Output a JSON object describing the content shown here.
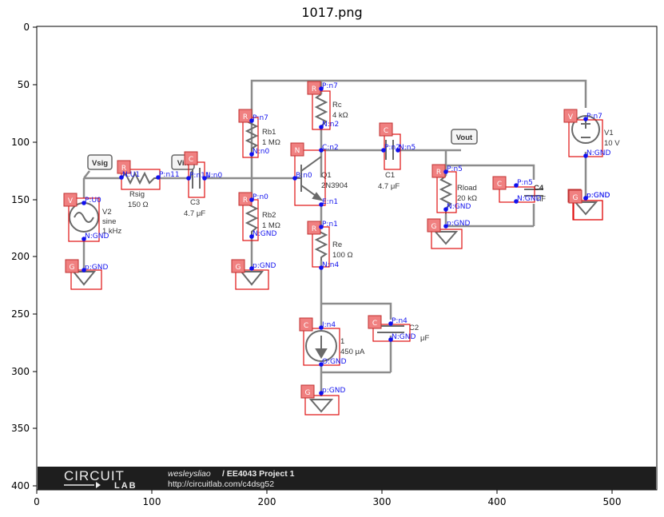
{
  "title": "1017.png",
  "axes": {
    "x_ticks": [
      "0",
      "100",
      "200",
      "300",
      "400",
      "500"
    ],
    "y_ticks": [
      "0",
      "50",
      "100",
      "150",
      "200",
      "250",
      "300",
      "350",
      "400"
    ]
  },
  "net_labels": {
    "vsig": "Vsig",
    "vin": "Vin",
    "vout": "Vout"
  },
  "components": {
    "v2": {
      "name": "V2",
      "type": "sine",
      "value": "1 kHz"
    },
    "rsig": {
      "name": "Rsig",
      "value": "150 Ω"
    },
    "c3": {
      "name": "C3",
      "value": "4.7 μF"
    },
    "rb1": {
      "name": "Rb1",
      "value": "1 MΩ"
    },
    "rb2": {
      "name": "Rb2",
      "value": "1 MΩ"
    },
    "rc": {
      "name": "Rc",
      "value": "4 kΩ"
    },
    "q1": {
      "name": "Q1",
      "value": "2N3904"
    },
    "re": {
      "name": "Re",
      "value": "100 Ω"
    },
    "c1": {
      "name": "C1",
      "value": "4.7 μF"
    },
    "rload": {
      "name": "Rload",
      "value": "20 kΩ"
    },
    "c4": {
      "name": "C4",
      "value": "nF"
    },
    "v1": {
      "name": "V1",
      "value": "10 V"
    },
    "i1": {
      "name": "1",
      "value": "450 μA"
    },
    "c2": {
      "name": "C2",
      "value": "μF"
    }
  },
  "detections": [
    {
      "tag": "V",
      "pins": [
        "P:U0",
        "N:GND"
      ]
    },
    {
      "tag": "R",
      "pins": [
        "N:U1",
        "P:n11"
      ]
    },
    {
      "tag": "C",
      "pins": [
        "P:n11",
        "N:n0"
      ]
    },
    {
      "tag": "R",
      "pins": [
        "P:n7",
        "N:n0"
      ]
    },
    {
      "tag": "R",
      "pins": [
        "P:n0",
        "N:GND"
      ]
    },
    {
      "tag": "R",
      "pins": [
        "P:n7",
        "N:n2"
      ]
    },
    {
      "tag": "N",
      "pins": [
        "C:n2",
        "B:n0",
        "E:n1"
      ]
    },
    {
      "tag": "R",
      "pins": [
        "P:n1",
        "N:n4"
      ]
    },
    {
      "tag": "C",
      "pins": [
        "P:n2",
        "N:n5"
      ]
    },
    {
      "tag": "R",
      "pins": [
        "P:n5",
        "N:GND"
      ]
    },
    {
      "tag": "C",
      "pins": [
        "P:n5",
        "N:GND"
      ]
    },
    {
      "tag": "V",
      "pins": [
        "P:n7",
        "N:GND"
      ]
    },
    {
      "tag": "G",
      "pins": [
        "p:GND"
      ]
    },
    {
      "tag": "G",
      "pins": [
        "p:GND"
      ]
    },
    {
      "tag": "G",
      "pins": [
        "p:GND"
      ]
    },
    {
      "tag": "G",
      "pins": [
        "p:GND"
      ]
    },
    {
      "tag": "G",
      "pins": [
        "p:GND"
      ]
    },
    {
      "tag": "C",
      "pins": [
        "I:n4",
        "O:GND"
      ]
    },
    {
      "tag": "C",
      "pins": [
        "P:n4",
        "N:GND"
      ]
    },
    {
      "tag": "G",
      "pins": [
        "p:GND"
      ]
    }
  ],
  "footer": {
    "brand_top": "CIRCUIT",
    "brand_bottom": "LAB",
    "author": "wesleysliao",
    "project": "/ EE4043 Project 1",
    "url": "http://circuitlab.com/c4dsg52"
  },
  "colors": {
    "bbox": "#e01010",
    "tag_fill": "#f08080",
    "pin": "#1515ee",
    "wire": "#8c8c8c",
    "footer_bg": "#1e1e1e"
  }
}
